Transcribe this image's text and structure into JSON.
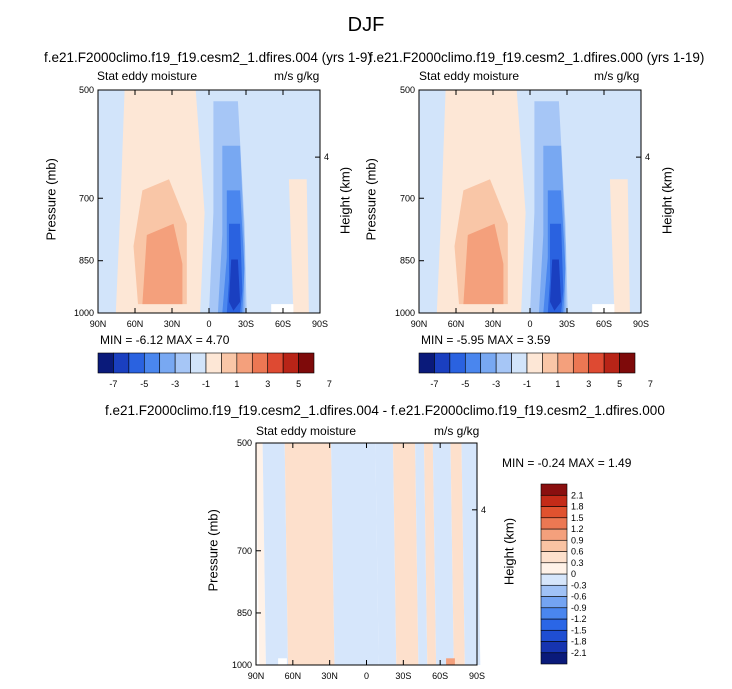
{
  "figure": {
    "title": "DJF"
  },
  "colors": {
    "panel_scale": [
      "#0a1a7a",
      "#1a3fc0",
      "#2a62e0",
      "#4a86ee",
      "#78a8f2",
      "#a6c6f6",
      "#d2e4fa",
      "#fde7d6",
      "#f9c6a7",
      "#f4a07c",
      "#ec7753",
      "#de4a32",
      "#b82417",
      "#7e0a0a"
    ],
    "diff_scale": [
      "#0a1a7a",
      "#1634b0",
      "#1f4ed2",
      "#2a66e6",
      "#4a86ee",
      "#74a4f2",
      "#a0c2f6",
      "#d6e6fb",
      "#fff2e8",
      "#fde0cc",
      "#f9c3a3",
      "#f4a07c",
      "#ec7853",
      "#e0522f",
      "#c42b18",
      "#8a0f0f"
    ]
  },
  "chart_data": [
    {
      "type": "heatmap",
      "panel_title": "f.e21.F2000climo.f19_f19.cesm2_1.dfires.004 (yrs 1-9)",
      "left_label": "Stat eddy moisture",
      "right_label": "m/s g/kg",
      "ylabel": "Pressure (mb)",
      "ylabel_right": "Height (km)",
      "x_ticks": [
        "90N",
        "60N",
        "30N",
        "0",
        "30S",
        "60S",
        "90S"
      ],
      "y_ticks": [
        "500",
        "700",
        "850",
        "1000"
      ],
      "y_right_ticks": [
        "4"
      ],
      "ylim": [
        1000,
        500
      ],
      "xlim": [
        "90N",
        "90S"
      ],
      "stats": "MIN = -6.12  MAX =  4.70",
      "colorbar": {
        "orientation": "horizontal",
        "labels": [
          "-7",
          "-5",
          "-3",
          "-1",
          "1",
          "3",
          "5",
          "7"
        ],
        "levels": [
          -7,
          -6,
          -5,
          -4,
          -3,
          -2,
          -1,
          1,
          2,
          3,
          4,
          5,
          6,
          7
        ]
      },
      "min": -6.12,
      "max": 4.7
    },
    {
      "type": "heatmap",
      "panel_title": "f.e21.F2000climo.f19_f19.cesm2_1.dfires.000 (yrs 1-19)",
      "left_label": "Stat eddy moisture",
      "right_label": "m/s g/kg",
      "ylabel": "Pressure (mb)",
      "ylabel_right": "Height (km)",
      "x_ticks": [
        "90N",
        "60N",
        "30N",
        "0",
        "30S",
        "60S",
        "90S"
      ],
      "y_ticks": [
        "500",
        "700",
        "850",
        "1000"
      ],
      "y_right_ticks": [
        "4"
      ],
      "ylim": [
        1000,
        500
      ],
      "xlim": [
        "90N",
        "90S"
      ],
      "stats": "MIN = -5.95  MAX =  3.59",
      "colorbar": {
        "orientation": "horizontal",
        "labels": [
          "-7",
          "-5",
          "-3",
          "-1",
          "1",
          "3",
          "5",
          "7"
        ],
        "levels": [
          -7,
          -6,
          -5,
          -4,
          -3,
          -2,
          -1,
          1,
          2,
          3,
          4,
          5,
          6,
          7
        ]
      },
      "min": -5.95,
      "max": 3.59
    },
    {
      "type": "heatmap",
      "panel_title": "f.e21.F2000climo.f19_f19.cesm2_1.dfires.004 - f.e21.F2000climo.f19_f19.cesm2_1.dfires.000",
      "left_label": "Stat eddy moisture",
      "right_label": "m/s g/kg",
      "ylabel": "Pressure (mb)",
      "ylabel_right": "Height (km)",
      "x_ticks": [
        "90N",
        "60N",
        "30N",
        "0",
        "30S",
        "60S",
        "90S"
      ],
      "y_ticks": [
        "500",
        "700",
        "850",
        "1000"
      ],
      "y_right_ticks": [
        "4"
      ],
      "ylim": [
        1000,
        500
      ],
      "xlim": [
        "90N",
        "90S"
      ],
      "stats": "MIN = -0.24  MAX =  1.49",
      "colorbar": {
        "orientation": "vertical",
        "labels": [
          "2.1",
          "1.8",
          "1.5",
          "1.2",
          "0.9",
          "0.6",
          "0.3",
          "0",
          "-0.3",
          "-0.6",
          "-0.9",
          "-1.2",
          "-1.5",
          "-1.8",
          "-2.1"
        ],
        "levels": [
          -2.1,
          -1.8,
          -1.5,
          -1.2,
          -0.9,
          -0.6,
          -0.3,
          0,
          0.3,
          0.6,
          0.9,
          1.2,
          1.5,
          1.8,
          2.1
        ]
      },
      "min": -0.24,
      "max": 1.49
    }
  ]
}
